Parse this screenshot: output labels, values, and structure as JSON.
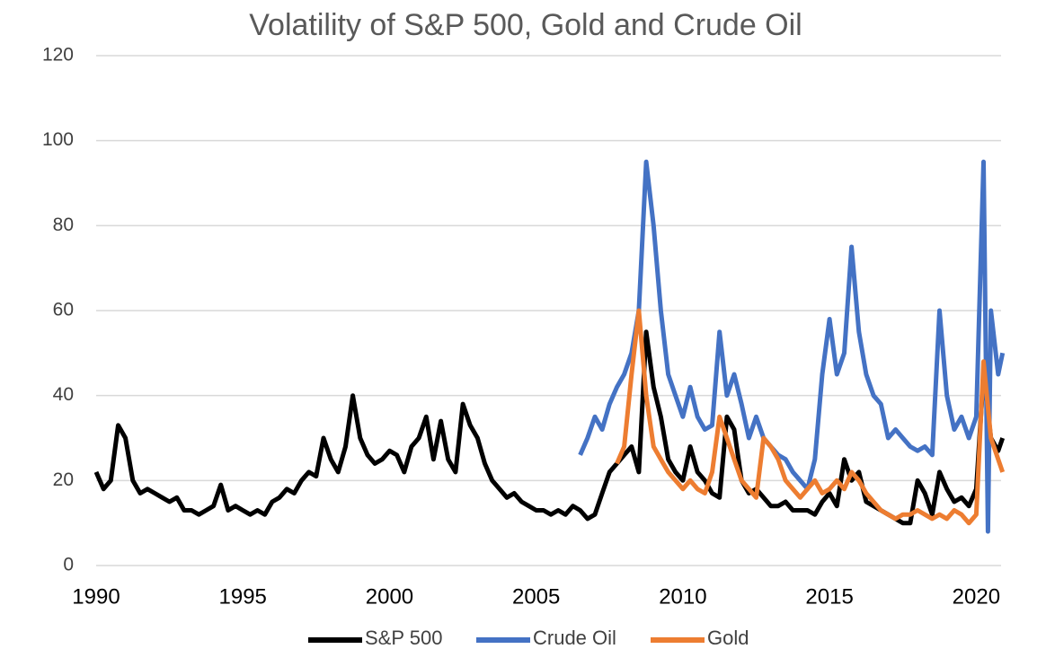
{
  "chart_data": {
    "type": "line",
    "title": "Volatility of S&P 500, Gold and Crude Oil",
    "xlim": [
      1990,
      2021
    ],
    "xticks": [
      1990,
      1995,
      2000,
      2005,
      2010,
      2015,
      2020
    ],
    "ylim": [
      0,
      120
    ],
    "yticks": [
      0,
      20,
      40,
      60,
      80,
      100,
      120
    ],
    "grid": true,
    "legend": "bottom",
    "series": [
      {
        "name": "S&P 500",
        "color": "#000000",
        "x": [
          1990,
          1990.25,
          1990.5,
          1990.75,
          1991,
          1991.25,
          1991.5,
          1991.75,
          1992,
          1992.25,
          1992.5,
          1992.75,
          1993,
          1993.25,
          1993.5,
          1993.75,
          1994,
          1994.25,
          1994.5,
          1994.75,
          1995,
          1995.25,
          1995.5,
          1995.75,
          1996,
          1996.25,
          1996.5,
          1996.75,
          1997,
          1997.25,
          1997.5,
          1997.75,
          1998,
          1998.25,
          1998.5,
          1998.75,
          1999,
          1999.25,
          1999.5,
          1999.75,
          2000,
          2000.25,
          2000.5,
          2000.75,
          2001,
          2001.25,
          2001.5,
          2001.75,
          2002,
          2002.25,
          2002.5,
          2002.75,
          2003,
          2003.25,
          2003.5,
          2003.75,
          2004,
          2004.25,
          2004.5,
          2004.75,
          2005,
          2005.25,
          2005.5,
          2005.75,
          2006,
          2006.25,
          2006.5,
          2006.75,
          2007,
          2007.25,
          2007.5,
          2007.75,
          2008,
          2008.25,
          2008.5,
          2008.75,
          2009,
          2009.25,
          2009.5,
          2009.75,
          2010,
          2010.25,
          2010.5,
          2010.75,
          2011,
          2011.25,
          2011.5,
          2011.75,
          2012,
          2012.25,
          2012.5,
          2012.75,
          2013,
          2013.25,
          2013.5,
          2013.75,
          2014,
          2014.25,
          2014.5,
          2014.75,
          2015,
          2015.25,
          2015.5,
          2015.75,
          2016,
          2016.25,
          2016.5,
          2016.75,
          2017,
          2017.25,
          2017.5,
          2017.75,
          2018,
          2018.25,
          2018.5,
          2018.75,
          2019,
          2019.25,
          2019.5,
          2019.75,
          2020,
          2020.25,
          2020.5,
          2020.75,
          2020.9
        ],
        "values": [
          22,
          18,
          20,
          33,
          30,
          20,
          17,
          18,
          17,
          16,
          15,
          16,
          13,
          13,
          12,
          13,
          14,
          19,
          13,
          14,
          13,
          12,
          13,
          12,
          15,
          16,
          18,
          17,
          20,
          22,
          21,
          30,
          25,
          22,
          28,
          40,
          30,
          26,
          24,
          25,
          27,
          26,
          22,
          28,
          30,
          35,
          25,
          34,
          25,
          22,
          38,
          33,
          30,
          24,
          20,
          18,
          16,
          17,
          15,
          14,
          13,
          13,
          12,
          13,
          12,
          14,
          13,
          11,
          12,
          17,
          22,
          24,
          26,
          28,
          22,
          55,
          42,
          35,
          25,
          22,
          20,
          28,
          22,
          20,
          17,
          16,
          35,
          32,
          20,
          17,
          18,
          16,
          14,
          14,
          15,
          13,
          13,
          13,
          12,
          15,
          17,
          14,
          25,
          20,
          22,
          15,
          14,
          13,
          12,
          11,
          10,
          10,
          20,
          17,
          12,
          22,
          18,
          15,
          16,
          14,
          18,
          45,
          30,
          27,
          30
        ]
      },
      {
        "name": "Crude Oil",
        "color": "#4472c4",
        "x": [
          2006.5,
          2006.75,
          2007,
          2007.25,
          2007.5,
          2007.75,
          2008,
          2008.25,
          2008.5,
          2008.75,
          2009,
          2009.25,
          2009.5,
          2009.75,
          2010,
          2010.25,
          2010.5,
          2010.75,
          2011,
          2011.25,
          2011.5,
          2011.75,
          2012,
          2012.25,
          2012.5,
          2012.75,
          2013,
          2013.25,
          2013.5,
          2013.75,
          2014,
          2014.25,
          2014.5,
          2014.75,
          2015,
          2015.25,
          2015.5,
          2015.75,
          2016,
          2016.25,
          2016.5,
          2016.75,
          2017,
          2017.25,
          2017.5,
          2017.75,
          2018,
          2018.25,
          2018.5,
          2018.75,
          2019,
          2019.25,
          2019.5,
          2019.75,
          2020,
          2020.25,
          2020.4,
          2020.5,
          2020.75,
          2020.9
        ],
        "values": [
          26,
          30,
          35,
          32,
          38,
          42,
          45,
          50,
          60,
          95,
          80,
          60,
          45,
          40,
          35,
          42,
          35,
          32,
          33,
          55,
          40,
          45,
          38,
          30,
          35,
          30,
          28,
          26,
          25,
          22,
          20,
          18,
          25,
          45,
          58,
          45,
          50,
          75,
          55,
          45,
          40,
          38,
          30,
          32,
          30,
          28,
          27,
          28,
          26,
          60,
          40,
          32,
          35,
          30,
          35,
          95,
          8,
          60,
          45,
          50
        ]
      },
      {
        "name": "Gold",
        "color": "#ed7d31",
        "x": [
          2007.75,
          2008,
          2008.25,
          2008.5,
          2008.75,
          2009,
          2009.25,
          2009.5,
          2009.75,
          2010,
          2010.25,
          2010.5,
          2010.75,
          2011,
          2011.25,
          2011.5,
          2011.75,
          2012,
          2012.25,
          2012.5,
          2012.75,
          2013,
          2013.25,
          2013.5,
          2013.75,
          2014,
          2014.25,
          2014.5,
          2014.75,
          2015,
          2015.25,
          2015.5,
          2015.75,
          2016,
          2016.25,
          2016.5,
          2016.75,
          2017,
          2017.25,
          2017.5,
          2017.75,
          2018,
          2018.25,
          2018.5,
          2018.75,
          2019,
          2019.25,
          2019.5,
          2019.75,
          2020,
          2020.25,
          2020.5,
          2020.75,
          2020.9
        ],
        "values": [
          24,
          28,
          45,
          60,
          40,
          28,
          25,
          22,
          20,
          18,
          20,
          18,
          17,
          22,
          35,
          30,
          25,
          20,
          18,
          16,
          30,
          28,
          25,
          20,
          18,
          16,
          18,
          20,
          17,
          18,
          20,
          18,
          22,
          20,
          17,
          15,
          13,
          12,
          11,
          12,
          12,
          13,
          12,
          11,
          12,
          11,
          13,
          12,
          10,
          12,
          48,
          30,
          25,
          22
        ]
      }
    ]
  }
}
